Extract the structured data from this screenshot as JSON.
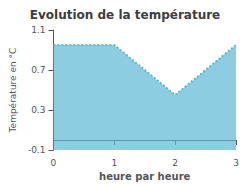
{
  "chart_data": {
    "type": "area",
    "title": "Evolution de la température",
    "xlabel": "heure par heure",
    "ylabel": "Température en °C",
    "x": [
      0,
      1,
      2,
      3
    ],
    "values": [
      0.95,
      0.95,
      0.45,
      0.95
    ],
    "color": "#5bb8d4",
    "line_style": "dotted",
    "xlim": [
      0,
      3
    ],
    "xticks": [
      0,
      1,
      2,
      3
    ],
    "ylim": [
      -0.1,
      1.1
    ],
    "yticks": [
      -0.1,
      0.3,
      0.7,
      1.1
    ],
    "grid": false
  }
}
